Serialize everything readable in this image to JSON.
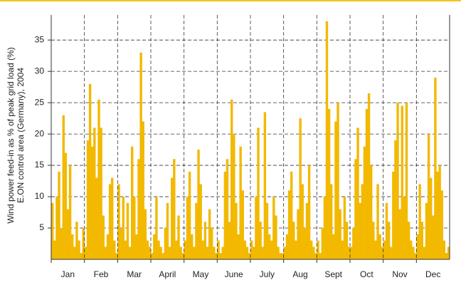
{
  "chart_data": {
    "type": "bar",
    "y_label": [
      "Wind power feed-in as % of peak grid load (%)",
      "E.ON control area (Germany), 2004"
    ],
    "categories": [
      "Jan",
      "Feb",
      "Mar",
      "April",
      "May",
      "June",
      "July",
      "Aug",
      "Sept",
      "Oct",
      "Nov",
      "Dec"
    ],
    "values": [
      [
        9,
        3,
        10,
        14,
        5,
        23,
        17,
        8,
        15,
        4,
        2,
        6,
        3,
        1,
        5
      ],
      [
        2,
        19,
        28,
        18,
        21,
        13,
        25.5,
        21,
        7,
        2,
        4,
        12,
        13,
        3,
        1
      ],
      [
        12,
        5,
        10,
        3,
        9,
        2,
        18,
        10,
        4,
        16,
        33,
        22,
        8,
        3,
        2
      ],
      [
        1,
        4,
        10,
        3,
        2,
        1,
        5,
        9,
        2,
        13,
        16,
        3,
        7,
        2,
        1
      ],
      [
        3,
        10,
        14,
        4,
        2,
        9,
        17.5,
        12,
        3,
        6,
        2,
        8,
        5,
        2,
        1
      ],
      [
        3,
        1,
        2,
        14,
        16,
        6,
        25.5,
        20,
        9,
        4,
        18,
        11,
        3,
        2,
        1
      ],
      [
        3,
        2,
        10,
        21,
        6,
        2,
        23.5,
        9,
        4,
        3,
        10,
        7,
        2,
        1,
        1
      ],
      [
        2,
        4,
        11,
        14,
        6,
        3,
        8,
        22.5,
        12,
        5,
        9,
        15,
        3,
        2,
        1
      ],
      [
        3,
        1,
        5,
        10,
        38,
        24,
        12,
        4,
        22,
        25,
        8,
        3,
        10,
        6,
        2
      ],
      [
        2,
        5,
        16,
        21,
        9,
        12,
        18,
        24,
        26.5,
        15,
        6,
        3,
        12,
        4,
        2
      ],
      [
        3,
        9,
        6,
        2,
        14,
        19,
        25,
        8,
        24.5,
        10,
        25,
        6,
        3,
        2,
        1
      ],
      [
        4,
        12,
        6,
        2,
        9,
        20,
        13,
        7,
        29,
        14,
        15,
        11,
        3,
        1,
        2
      ]
    ],
    "color": "#f2b900",
    "ylim": [
      0,
      39
    ],
    "yticks": [
      5,
      10,
      15,
      20,
      25,
      30,
      35
    ],
    "grid": true
  }
}
